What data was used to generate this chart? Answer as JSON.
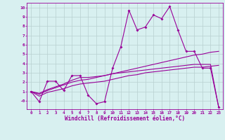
{
  "x": [
    0,
    1,
    2,
    3,
    4,
    5,
    6,
    7,
    8,
    9,
    10,
    11,
    12,
    13,
    14,
    15,
    16,
    17,
    18,
    19,
    20,
    21,
    22,
    23
  ],
  "line1": [
    1,
    -0.1,
    2.1,
    2.1,
    1.1,
    2.7,
    2.7,
    0.6,
    -0.3,
    -0.1,
    3.5,
    5.8,
    9.7,
    7.6,
    7.9,
    9.2,
    8.8,
    10.1,
    7.6,
    5.3,
    5.3,
    3.5,
    3.5,
    -0.7
  ],
  "line2": [
    1.0,
    0.7,
    1.1,
    1.4,
    1.7,
    2.0,
    2.2,
    2.3,
    2.5,
    2.7,
    2.9,
    3.1,
    3.3,
    3.5,
    3.7,
    3.9,
    4.1,
    4.3,
    4.5,
    4.7,
    4.9,
    5.0,
    5.2,
    5.3
  ],
  "line3": [
    1.0,
    0.8,
    1.2,
    1.5,
    1.8,
    2.2,
    2.5,
    2.5,
    2.6,
    2.7,
    2.9,
    3.0,
    3.1,
    3.2,
    3.3,
    3.4,
    3.5,
    3.6,
    3.7,
    3.8,
    3.9,
    3.9,
    3.9,
    -0.7
  ],
  "line4": [
    1.0,
    0.5,
    0.9,
    1.1,
    1.3,
    1.6,
    1.8,
    1.9,
    2.0,
    2.1,
    2.3,
    2.5,
    2.7,
    2.8,
    3.0,
    3.1,
    3.2,
    3.3,
    3.4,
    3.5,
    3.6,
    3.6,
    3.7,
    3.8
  ],
  "color": "#990099",
  "bg_color": "#d8f0f0",
  "grid_color": "#b8d0d0",
  "xlabel": "Windchill (Refroidissement éolien,°C)",
  "xlim": [
    -0.5,
    23.5
  ],
  "ylim": [
    -0.9,
    10.5
  ],
  "yticks": [
    0,
    1,
    2,
    3,
    4,
    5,
    6,
    7,
    8,
    9,
    10
  ],
  "ytick_labels": [
    "-0",
    "1",
    "2",
    "3",
    "4",
    "5",
    "6",
    "7",
    "8",
    "9",
    "10"
  ],
  "xticks": [
    0,
    1,
    2,
    3,
    4,
    5,
    6,
    7,
    8,
    9,
    10,
    11,
    12,
    13,
    14,
    15,
    16,
    17,
    18,
    19,
    20,
    21,
    22,
    23
  ]
}
